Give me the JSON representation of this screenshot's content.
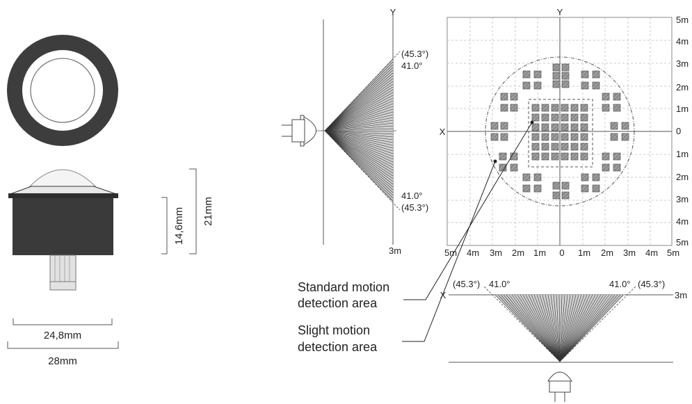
{
  "dimensions": {
    "width_24_8": "24,8mm",
    "width_28": "28mm",
    "height_14_6": "14,6mm",
    "height_21": "21mm"
  },
  "side_view": {
    "axis_y": "Y",
    "range_label": "3m",
    "angle_inner_top": "41.0°",
    "angle_outer_top": "(45.3°)",
    "angle_inner_bottom": "41.0°",
    "angle_outer_bottom": "(45.3°)"
  },
  "grid_view": {
    "axis_x": "X",
    "axis_y": "Y",
    "right_ticks": [
      "5m",
      "4m",
      "3m",
      "2m",
      "1m",
      "0",
      "1m",
      "2m",
      "3m",
      "4m",
      "5m"
    ],
    "bottom_ticks": [
      "5m",
      "4m",
      "3m",
      "2m",
      "1m",
      "0",
      "1m",
      "2m",
      "3m",
      "4m",
      "5m"
    ]
  },
  "bottom_view": {
    "axis_x": "X",
    "range_label": "3m",
    "angle_outer_left": "(45.3°)",
    "angle_inner_left": "41.0°",
    "angle_inner_right": "41.0°",
    "angle_outer_right": "(45.3°)"
  },
  "legend": {
    "standard_line1": "Standard motion",
    "standard_line2": "detection area",
    "slight_line1": "Slight motion",
    "slight_line2": "detection area"
  },
  "colors": {
    "body": "#3a3a3a",
    "line": "#444444",
    "grid": "#bbbbbb",
    "zone_fill": "#888888"
  }
}
